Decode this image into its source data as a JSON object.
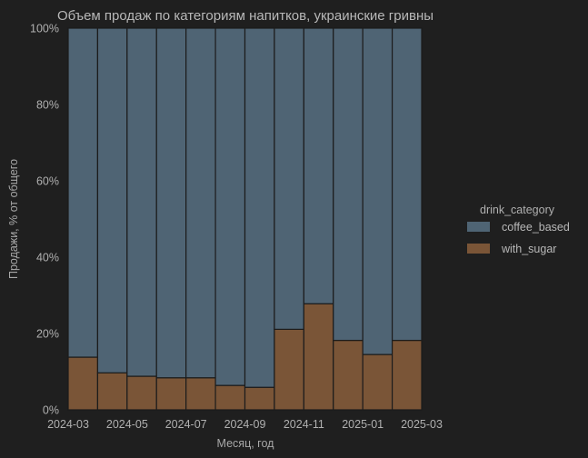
{
  "chart_data": {
    "type": "bar",
    "stacked": true,
    "normalized": true,
    "title": "Объем продаж по категориям напитков, украинские гривны",
    "xlabel": "Месяц, год",
    "ylabel": "Продажи, % от общего",
    "ylim": [
      0,
      100
    ],
    "y_ticks": [
      "0%",
      "20%",
      "40%",
      "60%",
      "80%",
      "100%"
    ],
    "x_ticks": [
      "2024-03",
      "2024-05",
      "2024-07",
      "2024-09",
      "2024-11",
      "2025-01",
      "2025-03"
    ],
    "categories": [
      "2024-03",
      "2024-04",
      "2024-05",
      "2024-06",
      "2024-07",
      "2024-08",
      "2024-09",
      "2024-10",
      "2024-11",
      "2024-12",
      "2025-01",
      "2025-02"
    ],
    "series": [
      {
        "name": "with_sugar",
        "color": "#7a5537",
        "values": [
          13.8,
          9.7,
          8.8,
          8.4,
          8.4,
          6.4,
          5.9,
          21.1,
          27.8,
          18.2,
          14.5,
          18.2
        ]
      },
      {
        "name": "coffee_based",
        "color": "#4f6474",
        "values": [
          86.2,
          90.3,
          91.2,
          91.6,
          91.6,
          93.6,
          94.1,
          78.9,
          72.2,
          81.8,
          85.5,
          81.8
        ]
      }
    ],
    "legend": {
      "title": "drink_category",
      "placement": "right",
      "entries": [
        "coffee_based",
        "with_sugar"
      ]
    },
    "grid": false
  }
}
